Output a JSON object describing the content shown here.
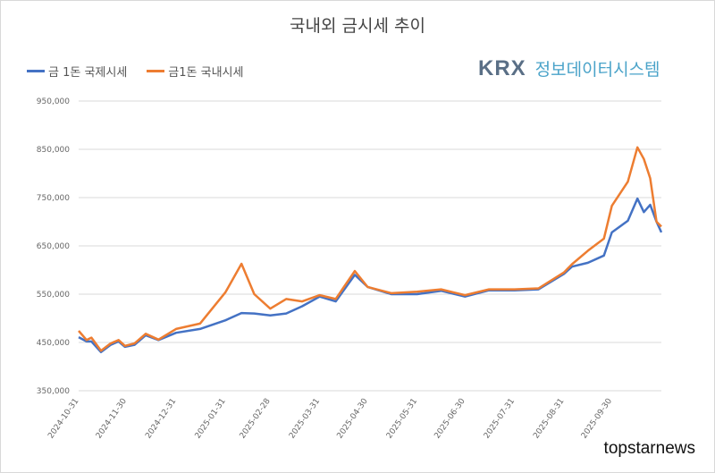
{
  "chart_data": {
    "type": "line",
    "title": "국내외 금시세 추이",
    "xlabel": "",
    "ylabel": "",
    "ylim": [
      350000,
      950000
    ],
    "yticks": [
      "350,000",
      "450,000",
      "550,000",
      "650,000",
      "750,000",
      "850,000",
      "950,000"
    ],
    "ytick_values": [
      350000,
      450000,
      550000,
      650000,
      750000,
      850000,
      950000
    ],
    "xlim": [
      "2024-10-31",
      "2025-10-31"
    ],
    "xticks": [
      "2024-10-31",
      "2024-11-30",
      "2024-12-31",
      "2025-01-31",
      "2025-02-28",
      "2025-03-31",
      "2025-04-30",
      "2025-05-31",
      "2025-06-30",
      "2025-07-31",
      "2025-08-31",
      "2025-09-30"
    ],
    "grid": true,
    "legend": "top-left",
    "x": [
      "2024-10-31",
      "2024-11-05",
      "2024-11-08",
      "2024-11-14",
      "2024-11-20",
      "2024-11-25",
      "2024-11-29",
      "2024-12-05",
      "2024-12-12",
      "2024-12-20",
      "2024-12-31",
      "2025-01-15",
      "2025-01-31",
      "2025-02-10",
      "2025-02-18",
      "2025-02-28",
      "2025-03-10",
      "2025-03-20",
      "2025-03-31",
      "2025-04-10",
      "2025-04-22",
      "2025-04-30",
      "2025-05-15",
      "2025-05-31",
      "2025-06-15",
      "2025-06-30",
      "2025-07-15",
      "2025-07-31",
      "2025-08-15",
      "2025-08-31",
      "2025-09-05",
      "2025-09-15",
      "2025-09-25",
      "2025-09-30",
      "2025-10-10",
      "2025-10-16",
      "2025-10-20",
      "2025-10-24",
      "2025-10-28",
      "2025-10-31"
    ],
    "series": [
      {
        "name": "금 1돈 국제시세",
        "color": "#4472c4",
        "values": [
          461000,
          452000,
          452000,
          430000,
          445000,
          452000,
          441000,
          445000,
          465000,
          455000,
          470000,
          478000,
          496000,
          511000,
          510000,
          506000,
          510000,
          525000,
          545000,
          535000,
          590000,
          565000,
          550000,
          550000,
          557000,
          545000,
          558000,
          558000,
          560000,
          592000,
          607000,
          615000,
          630000,
          678000,
          702000,
          748000,
          720000,
          735000,
          700000,
          678000
        ]
      },
      {
        "name": "금1돈 국내시세",
        "color": "#ed7d31",
        "values": [
          474000,
          455000,
          460000,
          433000,
          448000,
          455000,
          443000,
          448000,
          468000,
          456000,
          478000,
          489000,
          554000,
          613000,
          550000,
          520000,
          540000,
          535000,
          548000,
          540000,
          598000,
          565000,
          552000,
          555000,
          560000,
          548000,
          560000,
          560000,
          562000,
          595000,
          612000,
          640000,
          665000,
          733000,
          783000,
          854000,
          830000,
          790000,
          700000,
          690000
        ]
      }
    ]
  },
  "brand": {
    "logo": "KRX",
    "name": "정보데이터시스템"
  },
  "watermark": "topstarnews"
}
